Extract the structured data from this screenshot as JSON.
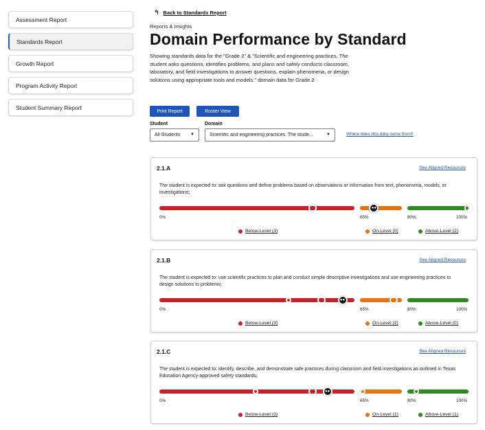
{
  "sidebar": {
    "items": [
      {
        "label": "Assessment Report"
      },
      {
        "label": "Standards Report",
        "active": true
      },
      {
        "label": "Growth Report"
      },
      {
        "label": "Program Activity Report"
      },
      {
        "label": "Student Summary Report"
      }
    ]
  },
  "header": {
    "back_label": "Back to Standards Report",
    "back_icon": "arrow-back-icon",
    "kicker": "Reports & Insights",
    "title": "Domain Performance by Standard",
    "description": "Showing standards data for the \"Grade 2\" & \"Scientific and engineering practices. The student asks questions, identifies problems, and plans and safely conducts classroom, laboratory, and field investigations to answer questions, explain phenomena, or design solutions using appropriate tools and models.\" domain data for Grade 2"
  },
  "actions": {
    "print_label": "Print Report",
    "roster_label": "Roster View"
  },
  "filters": {
    "student_label": "Student",
    "student_value": "All Students",
    "domain_label": "Domain",
    "domain_value": "Scientific and engineering practices. The stude...",
    "where_link": "Where does this data come from?"
  },
  "colors": {
    "below": "#c8202a",
    "on": "#e8720c",
    "above": "#2f8a1f",
    "accent": "#1f56b5"
  },
  "scale": {
    "min_label": "0%",
    "mid_label": "65%",
    "high_label": "80%",
    "max_label": "100%"
  },
  "standards": [
    {
      "id": "2.1.A",
      "link": "See Aligned Resources",
      "text": "The student is expected to: ask questions and define problems based on observations or information from text, phenomena, models, or investigations;",
      "below_label": "Below-Level (3)",
      "on_label": "On-Level (0)",
      "above_label": "Above-Level (2)",
      "average_pct": 70,
      "points": [
        {
          "pct": 51,
          "type": "big",
          "level": "below"
        },
        {
          "pct": 100,
          "type": "big",
          "level": "above"
        }
      ]
    },
    {
      "id": "2.1.B",
      "link": "See Aligned Resources",
      "text": "The student is expected to: use scientific practices to plan and conduct simple descriptive investigations and use engineering practices to design solutions to problems;",
      "below_label": "Below-Level (3)",
      "on_label": "On-Level (2)",
      "above_label": "Above-Level (0)",
      "average_pct": 61,
      "points": [
        {
          "pct": 43,
          "type": "small",
          "level": "below"
        },
        {
          "pct": 54,
          "type": "big",
          "level": "below"
        },
        {
          "pct": 77,
          "type": "big",
          "level": "on"
        }
      ]
    },
    {
      "id": "2.1.C",
      "link": "See Aligned Resources",
      "text": "The student is expected to: identify, describe, and demonstrate safe practices during classroom and field investigations as outlined in Texas Education Agency-approved safety standards;",
      "below_label": "Below-Level (3)",
      "on_label": "On-Level (1)",
      "above_label": "Above-Level (1)",
      "average_pct": 56,
      "points": [
        {
          "pct": 32,
          "type": "small",
          "level": "below"
        },
        {
          "pct": 51,
          "type": "big",
          "level": "below"
        },
        {
          "pct": 66,
          "type": "small",
          "level": "on"
        },
        {
          "pct": 83,
          "type": "small",
          "level": "above"
        }
      ]
    }
  ]
}
